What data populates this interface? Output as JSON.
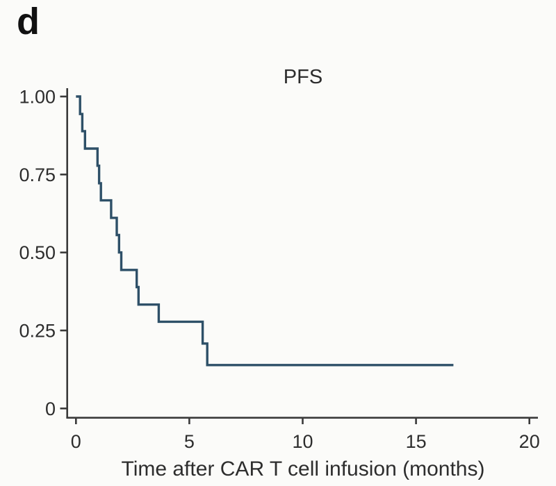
{
  "panel_label": "d",
  "colors": {
    "background": "#fbfbf9",
    "curve": "#2e5068",
    "axis": "#3a3a3a",
    "text": "#2d2d2d"
  },
  "chart_data": {
    "type": "line",
    "subtype": "kaplan-meier-step-curve",
    "title": "PFS",
    "xlabel": "Time after CAR T cell infusion (months)",
    "ylabel": "",
    "xlim": [
      0,
      20
    ],
    "ylim": [
      0,
      1
    ],
    "grid": false,
    "legend": false,
    "x_ticks": {
      "values": [
        0,
        5,
        10,
        15,
        20
      ],
      "labels": [
        "0",
        "5",
        "10",
        "15",
        "20"
      ]
    },
    "y_ticks": {
      "values": [
        1.0,
        0.75,
        0.5,
        0.25,
        0
      ],
      "labels": [
        "1.00",
        "0.75",
        "0.50",
        "0.25",
        "0"
      ]
    },
    "series": [
      {
        "name": "PFS",
        "color": "#2e5068",
        "steps": [
          [
            0,
            1.0
          ],
          [
            0.18,
            0.944
          ],
          [
            0.28,
            0.889
          ],
          [
            0.4,
            0.833
          ],
          [
            0.95,
            0.778
          ],
          [
            1.02,
            0.722
          ],
          [
            1.1,
            0.667
          ],
          [
            1.55,
            0.611
          ],
          [
            1.8,
            0.556
          ],
          [
            1.9,
            0.5
          ],
          [
            2.0,
            0.444
          ],
          [
            2.68,
            0.389
          ],
          [
            2.76,
            0.333
          ],
          [
            3.65,
            0.278
          ],
          [
            5.59,
            0.208
          ],
          [
            5.79,
            0.139
          ]
        ],
        "end_time": 16.65
      }
    ]
  }
}
